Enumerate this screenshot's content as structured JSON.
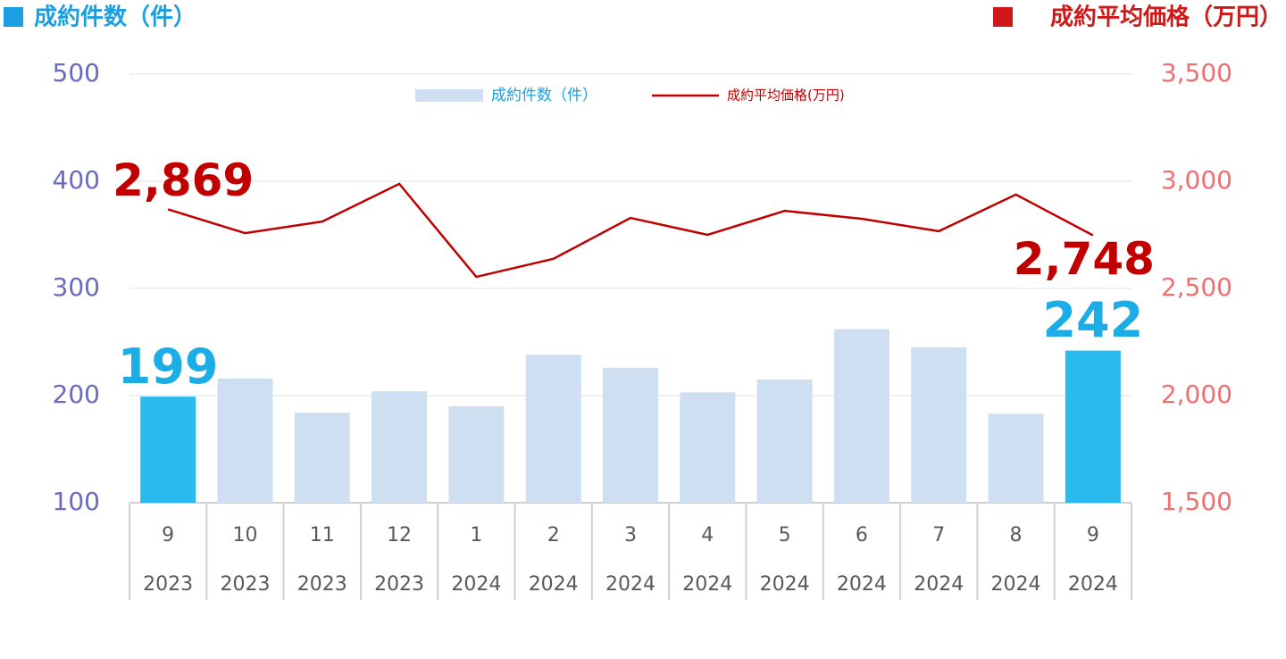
{
  "chart_data": {
    "type": "bar-line",
    "left_axis_title": "成約件数（件）",
    "right_axis_title": "成約平均価格（万円）",
    "categories": [
      [
        "9",
        "2023"
      ],
      [
        "10",
        "2023"
      ],
      [
        "11",
        "2023"
      ],
      [
        "12",
        "2023"
      ],
      [
        "1",
        "2024"
      ],
      [
        "2",
        "2024"
      ],
      [
        "3",
        "2024"
      ],
      [
        "4",
        "2024"
      ],
      [
        "5",
        "2024"
      ],
      [
        "6",
        "2024"
      ],
      [
        "7",
        "2024"
      ],
      [
        "8",
        "2024"
      ],
      [
        "9",
        "2024"
      ]
    ],
    "series": [
      {
        "name": "成約件数（件）",
        "type": "bar",
        "color": "#cfdff2",
        "colors": [
          "#29bbee",
          "#cfdff2",
          "#cfdff2",
          "#cfdff2",
          "#cfdff2",
          "#cfdff2",
          "#cfdff2",
          "#cfdff2",
          "#cfdff2",
          "#cfdff2",
          "#cfdff2",
          "#cfdff2",
          "#29bbee"
        ],
        "values": [
          199,
          216,
          184,
          204,
          190,
          238,
          226,
          203,
          215,
          262,
          245,
          183,
          242
        ],
        "value_labels": [
          "199",
          null,
          null,
          null,
          null,
          null,
          null,
          null,
          null,
          null,
          null,
          null,
          "242"
        ]
      },
      {
        "name": "成約平均価格(万円)",
        "type": "line",
        "axis": "y2",
        "color": "#c00000",
        "values": [
          2869,
          2758,
          2812,
          2988,
          2554,
          2638,
          2829,
          2750,
          2862,
          2825,
          2767,
          2938,
          2748
        ],
        "value_labels": [
          "2,869",
          null,
          null,
          null,
          null,
          null,
          null,
          null,
          null,
          null,
          null,
          null,
          "2,748"
        ]
      }
    ],
    "ylim": [
      100,
      500
    ],
    "yticks": [
      100,
      200,
      300,
      400,
      500
    ],
    "y2lim": [
      1500,
      3500
    ],
    "y2ticks": [
      {
        "value": 1500,
        "label": "1,500"
      },
      {
        "value": 2000,
        "label": "2,000"
      },
      {
        "value": 2500,
        "label": "2,500"
      },
      {
        "value": 3000,
        "label": "3,000"
      },
      {
        "value": 3500,
        "label": "3,500"
      }
    ],
    "grid": true
  }
}
